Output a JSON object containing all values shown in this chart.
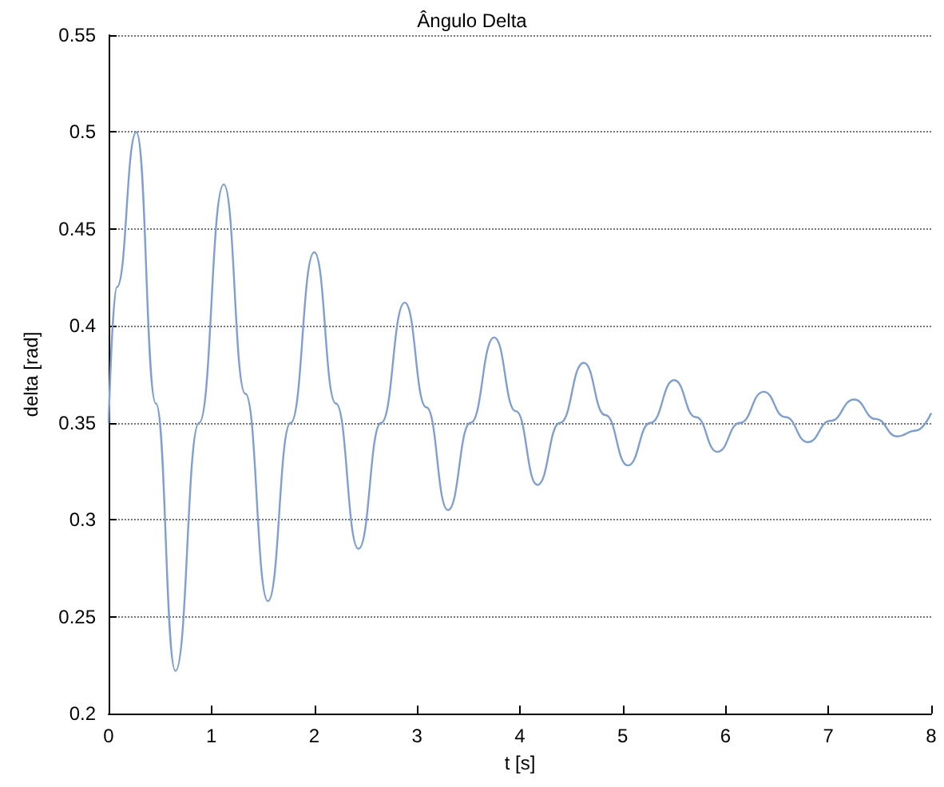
{
  "chart_data": {
    "type": "line",
    "title": "Ângulo Delta",
    "xlabel": "t [s]",
    "ylabel": "delta [rad]",
    "series": [
      {
        "color": "#7f9fd0",
        "x": [
          0,
          0.08,
          0.27,
          0.46,
          0.65,
          0.88,
          1.12,
          1.33,
          1.55,
          1.77,
          2.0,
          2.21,
          2.43,
          2.65,
          2.88,
          3.09,
          3.3,
          3.52,
          3.75,
          3.96,
          4.17,
          4.39,
          4.62,
          4.83,
          5.05,
          5.27,
          5.5,
          5.71,
          5.92,
          6.14,
          6.37,
          6.58,
          6.8,
          7.02,
          7.25,
          7.46,
          7.67,
          7.85,
          8
        ],
        "values": [
          0.35,
          0.42,
          0.5,
          0.36,
          0.222,
          0.35,
          0.473,
          0.365,
          0.258,
          0.35,
          0.438,
          0.36,
          0.285,
          0.35,
          0.412,
          0.358,
          0.305,
          0.35,
          0.394,
          0.356,
          0.318,
          0.35,
          0.381,
          0.354,
          0.328,
          0.35,
          0.372,
          0.353,
          0.335,
          0.35,
          0.366,
          0.353,
          0.34,
          0.351,
          0.362,
          0.352,
          0.343,
          0.346,
          0.355
        ]
      }
    ],
    "xlim": [
      0,
      8
    ],
    "xticks": [
      0,
      1,
      2,
      3,
      4,
      5,
      6,
      7,
      8
    ],
    "ylim": [
      0.2,
      0.55
    ],
    "yticks": [
      0.2,
      0.25,
      0.3,
      0.35,
      0.4,
      0.45,
      0.5,
      0.55
    ],
    "grid": "y",
    "marker": "none",
    "line_style": "solid"
  }
}
